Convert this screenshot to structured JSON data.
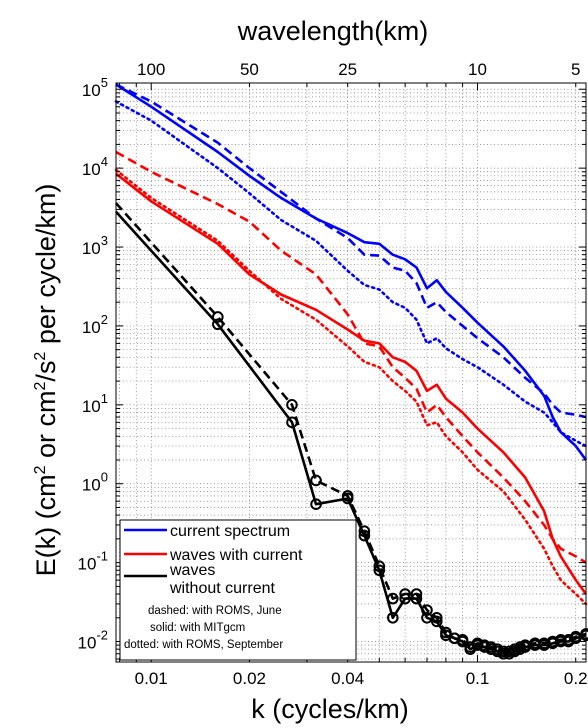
{
  "chart_data": {
    "type": "line",
    "xscale": "log",
    "yscale": "log",
    "xlim": [
      0.0078,
      0.215
    ],
    "ylim": [
      0.0055,
      120000
    ],
    "grid": true,
    "title": "",
    "xlabel": "k (cycles/km)",
    "ylabel": "E(k) (cm² or cm²/s² per cycle/km)",
    "ylabel_parts": {
      "a": "E(k) (cm",
      "b": "2",
      "c": " or cm",
      "d": "2",
      "e": "/s",
      "f": "2",
      "g": " per cycle/km)"
    },
    "top_axis": {
      "label": "wavelength(km)",
      "ticks": [
        {
          "label": "100",
          "k": 0.01
        },
        {
          "label": "50",
          "k": 0.02
        },
        {
          "label": "25",
          "k": 0.04
        },
        {
          "label": "10",
          "k": 0.1
        },
        {
          "label": "5",
          "k": 0.2
        }
      ]
    },
    "x_ticks": [
      {
        "label": "0.01",
        "value": 0.01
      },
      {
        "label": "0.02",
        "value": 0.02
      },
      {
        "label": "0.04",
        "value": 0.04
      },
      {
        "label": "0.1",
        "value": 0.1
      },
      {
        "label": "0.2",
        "value": 0.2
      }
    ],
    "y_ticks": [
      {
        "base": "10",
        "exp": "-2",
        "value": 0.01
      },
      {
        "base": "10",
        "exp": "-1",
        "value": 0.1
      },
      {
        "base": "10",
        "exp": "0",
        "value": 1
      },
      {
        "base": "10",
        "exp": "1",
        "value": 10
      },
      {
        "base": "10",
        "exp": "2",
        "value": 100
      },
      {
        "base": "10",
        "exp": "3",
        "value": 1000
      },
      {
        "base": "10",
        "exp": "4",
        "value": 10000
      },
      {
        "base": "10",
        "exp": "5",
        "value": 100000
      }
    ],
    "legend": {
      "placement": "bottom-left",
      "entries": [
        {
          "label": "current spectrum",
          "color": "#0000ff"
        },
        {
          "label_line1": "waves with current",
          "label_line2": "",
          "color": "#ff0000"
        },
        {
          "label_line1": "waves",
          "label_line2": "without current",
          "color": "#000000"
        }
      ],
      "notes": [
        "dashed: with ROMS, June",
        "solid: with MITgcm",
        "dotted: with ROMS, September"
      ]
    },
    "colors": {
      "current": "#0000ff",
      "waves_with_current": "#ff0000",
      "waves_without_current": "#000000"
    },
    "series": [
      {
        "group": "current",
        "style": "solid",
        "color": "#0000ff",
        "x": [
          0.0078,
          0.01,
          0.016,
          0.02,
          0.025,
          0.032,
          0.04,
          0.045,
          0.05,
          0.055,
          0.06,
          0.065,
          0.07,
          0.075,
          0.08,
          0.09,
          0.1,
          0.12,
          0.14,
          0.16,
          0.17,
          0.18,
          0.2,
          0.215
        ],
        "y": [
          115000,
          60000,
          16000,
          8000,
          4200,
          2300,
          1500,
          1150,
          1100,
          800,
          700,
          550,
          300,
          380,
          270,
          170,
          110,
          55,
          27,
          13,
          7,
          4.5,
          3.0,
          2.0
        ]
      },
      {
        "group": "current",
        "style": "dashed",
        "color": "#0000ff",
        "x": [
          0.0078,
          0.01,
          0.016,
          0.02,
          0.025,
          0.032,
          0.04,
          0.045,
          0.05,
          0.055,
          0.06,
          0.065,
          0.07,
          0.075,
          0.08,
          0.09,
          0.1,
          0.12,
          0.14,
          0.16,
          0.17,
          0.18,
          0.2,
          0.215
        ],
        "y": [
          115000,
          70000,
          21000,
          10000,
          5000,
          2300,
          1300,
          800,
          780,
          550,
          500,
          350,
          170,
          200,
          150,
          100,
          70,
          40,
          22,
          14,
          10,
          8,
          7.5,
          7
        ]
      },
      {
        "group": "current",
        "style": "dotted",
        "color": "#0000ff",
        "x": [
          0.0078,
          0.01,
          0.016,
          0.02,
          0.025,
          0.032,
          0.04,
          0.045,
          0.05,
          0.055,
          0.06,
          0.065,
          0.07,
          0.075,
          0.08,
          0.09,
          0.1,
          0.12,
          0.14,
          0.16,
          0.17,
          0.18,
          0.2,
          0.215
        ],
        "y": [
          70000,
          40000,
          10000,
          4800,
          2200,
          1200,
          500,
          330,
          290,
          200,
          170,
          120,
          60,
          70,
          52,
          38,
          30,
          18,
          11,
          8,
          6,
          4.5,
          3.5,
          3
        ]
      },
      {
        "group": "waves_with_current",
        "style": "solid",
        "color": "#ff0000",
        "x": [
          0.0078,
          0.01,
          0.016,
          0.02,
          0.025,
          0.032,
          0.04,
          0.045,
          0.05,
          0.055,
          0.06,
          0.065,
          0.07,
          0.075,
          0.08,
          0.09,
          0.1,
          0.12,
          0.14,
          0.16,
          0.17,
          0.18,
          0.2,
          0.215
        ],
        "y": [
          8500,
          3800,
          1100,
          450,
          250,
          160,
          90,
          65,
          60,
          40,
          35,
          27,
          15,
          18,
          12,
          8,
          5,
          2.5,
          1.2,
          0.45,
          0.2,
          0.12,
          0.06,
          0.04
        ]
      },
      {
        "group": "waves_with_current",
        "style": "dashed",
        "color": "#ff0000",
        "x": [
          0.0078,
          0.01,
          0.016,
          0.02,
          0.025,
          0.032,
          0.04,
          0.045,
          0.05,
          0.055,
          0.06,
          0.065,
          0.07,
          0.075,
          0.08,
          0.09,
          0.1,
          0.12,
          0.14,
          0.16,
          0.17,
          0.18,
          0.2,
          0.215
        ],
        "y": [
          16000,
          9000,
          3500,
          2100,
          900,
          450,
          140,
          60,
          55,
          30,
          22,
          16,
          8,
          10,
          7,
          4,
          2.5,
          1.2,
          0.6,
          0.3,
          0.2,
          0.15,
          0.12,
          0.1
        ]
      },
      {
        "group": "waves_with_current",
        "style": "dotted",
        "color": "#ff0000",
        "x": [
          0.0078,
          0.01,
          0.016,
          0.02,
          0.025,
          0.032,
          0.04,
          0.045,
          0.05,
          0.055,
          0.06,
          0.065,
          0.07,
          0.075,
          0.08,
          0.09,
          0.1,
          0.12,
          0.14,
          0.16,
          0.17,
          0.18,
          0.2,
          0.215
        ],
        "y": [
          9500,
          4200,
          1200,
          500,
          220,
          120,
          55,
          35,
          30,
          20,
          15,
          11,
          5.5,
          6,
          4,
          2.5,
          1.5,
          0.8,
          0.35,
          0.15,
          0.09,
          0.06,
          0.04,
          0.03
        ]
      },
      {
        "group": "waves_without_current",
        "style": "solid",
        "color": "#000000",
        "markers": "circle",
        "x": [
          0.0078,
          0.016,
          0.027,
          0.032,
          0.04,
          0.045,
          0.05,
          0.055,
          0.06,
          0.065,
          0.07,
          0.075,
          0.08,
          0.085,
          0.09,
          0.095,
          0.1,
          0.105,
          0.11,
          0.115,
          0.12,
          0.125,
          0.13,
          0.135,
          0.14,
          0.15,
          0.16,
          0.17,
          0.18,
          0.19,
          0.2,
          0.215
        ],
        "y": [
          2800,
          105,
          6,
          0.55,
          0.65,
          0.22,
          0.08,
          0.02,
          0.035,
          0.035,
          0.02,
          0.018,
          0.012,
          0.011,
          0.01,
          0.008,
          0.009,
          0.0085,
          0.008,
          0.0075,
          0.007,
          0.007,
          0.0075,
          0.008,
          0.0085,
          0.009,
          0.009,
          0.0095,
          0.01,
          0.01,
          0.011,
          0.012
        ]
      },
      {
        "group": "waves_without_current",
        "style": "dashed",
        "color": "#000000",
        "markers": "circle",
        "x": [
          0.0078,
          0.016,
          0.027,
          0.032,
          0.04,
          0.045,
          0.05,
          0.055,
          0.06,
          0.065,
          0.07,
          0.075,
          0.08,
          0.085,
          0.09,
          0.095,
          0.1,
          0.105,
          0.11,
          0.115,
          0.12,
          0.125,
          0.13,
          0.135,
          0.14,
          0.15,
          0.16,
          0.17,
          0.18,
          0.19,
          0.2,
          0.215
        ],
        "y": [
          3600,
          130,
          10,
          1.1,
          0.7,
          0.25,
          0.09,
          0.035,
          0.04,
          0.04,
          0.025,
          0.02,
          0.013,
          0.011,
          0.0105,
          0.0085,
          0.0095,
          0.009,
          0.0085,
          0.008,
          0.0075,
          0.0075,
          0.008,
          0.0085,
          0.009,
          0.0095,
          0.0095,
          0.01,
          0.0105,
          0.0105,
          0.0115,
          0.0125
        ]
      }
    ]
  }
}
